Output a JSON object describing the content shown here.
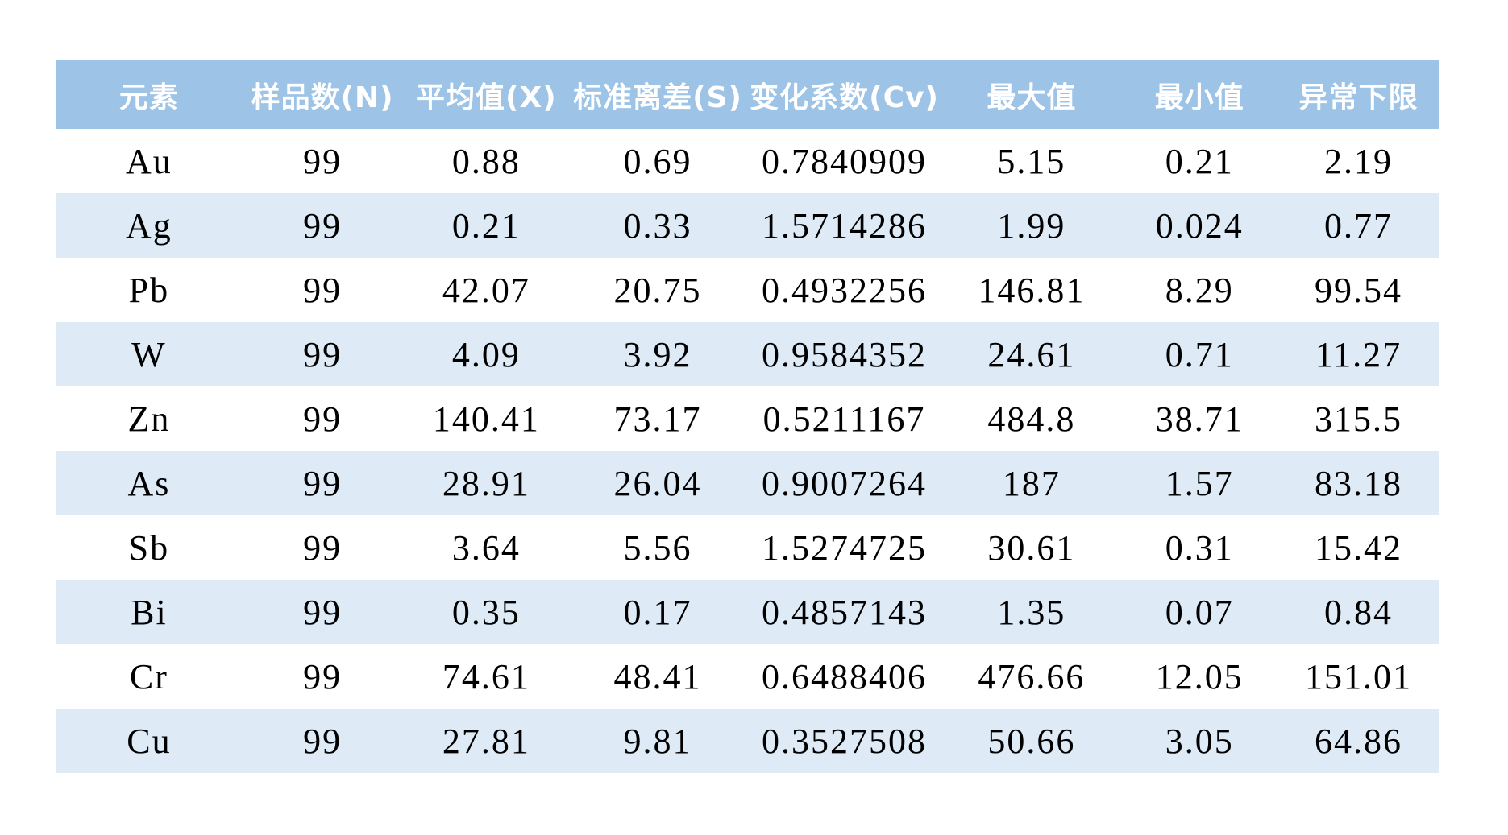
{
  "table": {
    "columns": [
      {
        "label": "元素"
      },
      {
        "label": "样品数(N)"
      },
      {
        "label": "平均值(X)"
      },
      {
        "label": "标准离差(S)"
      },
      {
        "label": "变化系数(Cv)"
      },
      {
        "label": "最大值"
      },
      {
        "label": "最小值"
      },
      {
        "label": "异常下限"
      }
    ],
    "rows": [
      {
        "cells": [
          "Au",
          "99",
          "0.88",
          "0.69",
          "0.7840909",
          "5.15",
          "0.21",
          "2.19"
        ]
      },
      {
        "cells": [
          "Ag",
          "99",
          "0.21",
          "0.33",
          "1.5714286",
          "1.99",
          "0.024",
          "0.77"
        ]
      },
      {
        "cells": [
          "Pb",
          "99",
          "42.07",
          "20.75",
          "0.4932256",
          "146.81",
          "8.29",
          "99.54"
        ]
      },
      {
        "cells": [
          "W",
          "99",
          "4.09",
          "3.92",
          "0.9584352",
          "24.61",
          "0.71",
          "11.27"
        ]
      },
      {
        "cells": [
          "Zn",
          "99",
          "140.41",
          "73.17",
          "0.5211167",
          "484.8",
          "38.71",
          "315.5"
        ]
      },
      {
        "cells": [
          "As",
          "99",
          "28.91",
          "26.04",
          "0.9007264",
          "187",
          "1.57",
          "83.18"
        ]
      },
      {
        "cells": [
          "Sb",
          "99",
          "3.64",
          "5.56",
          "1.5274725",
          "30.61",
          "0.31",
          "15.42"
        ]
      },
      {
        "cells": [
          "Bi",
          "99",
          "0.35",
          "0.17",
          "0.4857143",
          "1.35",
          "0.07",
          "0.84"
        ]
      },
      {
        "cells": [
          "Cr",
          "99",
          "74.61",
          "48.41",
          "0.6488406",
          "476.66",
          "12.05",
          "151.01"
        ]
      },
      {
        "cells": [
          "Cu",
          "99",
          "27.81",
          "9.81",
          "0.3527508",
          "50.66",
          "3.05",
          "64.86"
        ]
      }
    ],
    "style": {
      "header_bg": "#9DC3E6",
      "header_text": "#FFFFFF",
      "band_bg": "#DEEBF7",
      "row_bg": "#FFFFFF",
      "body_text": "#000000"
    }
  }
}
